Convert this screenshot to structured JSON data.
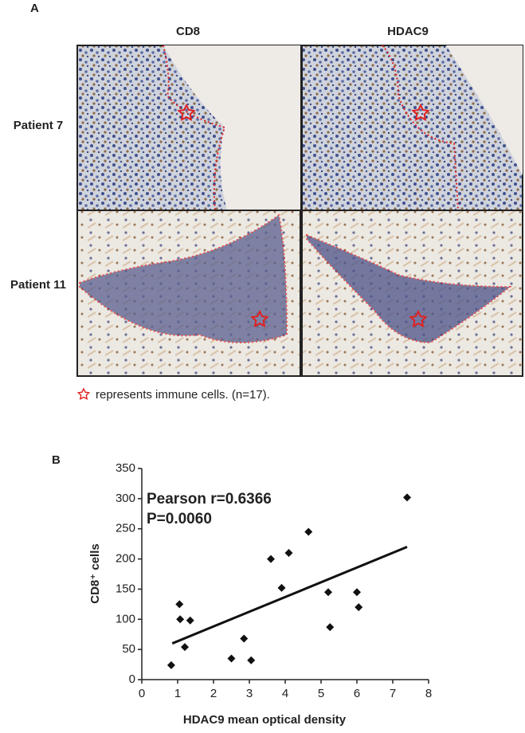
{
  "panel_a": {
    "label": "A",
    "columns": [
      "CD8",
      "HDAC9"
    ],
    "rows": [
      "Patient 7",
      "Patient 11"
    ],
    "caption": "represents immune cells. (n=17)."
  },
  "chart_data": {
    "type": "scatter",
    "panel_label": "B",
    "x_label": "HDAC9 mean optical density",
    "y_label": "CD8⁺ cells",
    "annotations": [
      "Pearson r=0.6366",
      "P=0.0060"
    ],
    "x": [
      0.82,
      1.07,
      1.2,
      1.05,
      1.35,
      2.5,
      2.85,
      3.05,
      3.6,
      3.9,
      4.1,
      4.65,
      5.2,
      5.25,
      6.0,
      6.05,
      7.4
    ],
    "series": [
      {
        "color": "#111111",
        "values": [
          24,
          100,
          54,
          125,
          98,
          35,
          68,
          32,
          200,
          152,
          210,
          245,
          145,
          87,
          145,
          120,
          302
        ]
      }
    ],
    "fit": {
      "x": [
        0.85,
        7.4
      ],
      "y": [
        60,
        220
      ]
    },
    "xlim": [
      0,
      8
    ],
    "xticks": [
      0,
      1,
      2,
      3,
      4,
      5,
      6,
      7,
      8
    ],
    "ylim": [
      0,
      350
    ],
    "yticks": [
      0,
      50,
      100,
      150,
      200,
      250,
      300,
      350
    ]
  }
}
